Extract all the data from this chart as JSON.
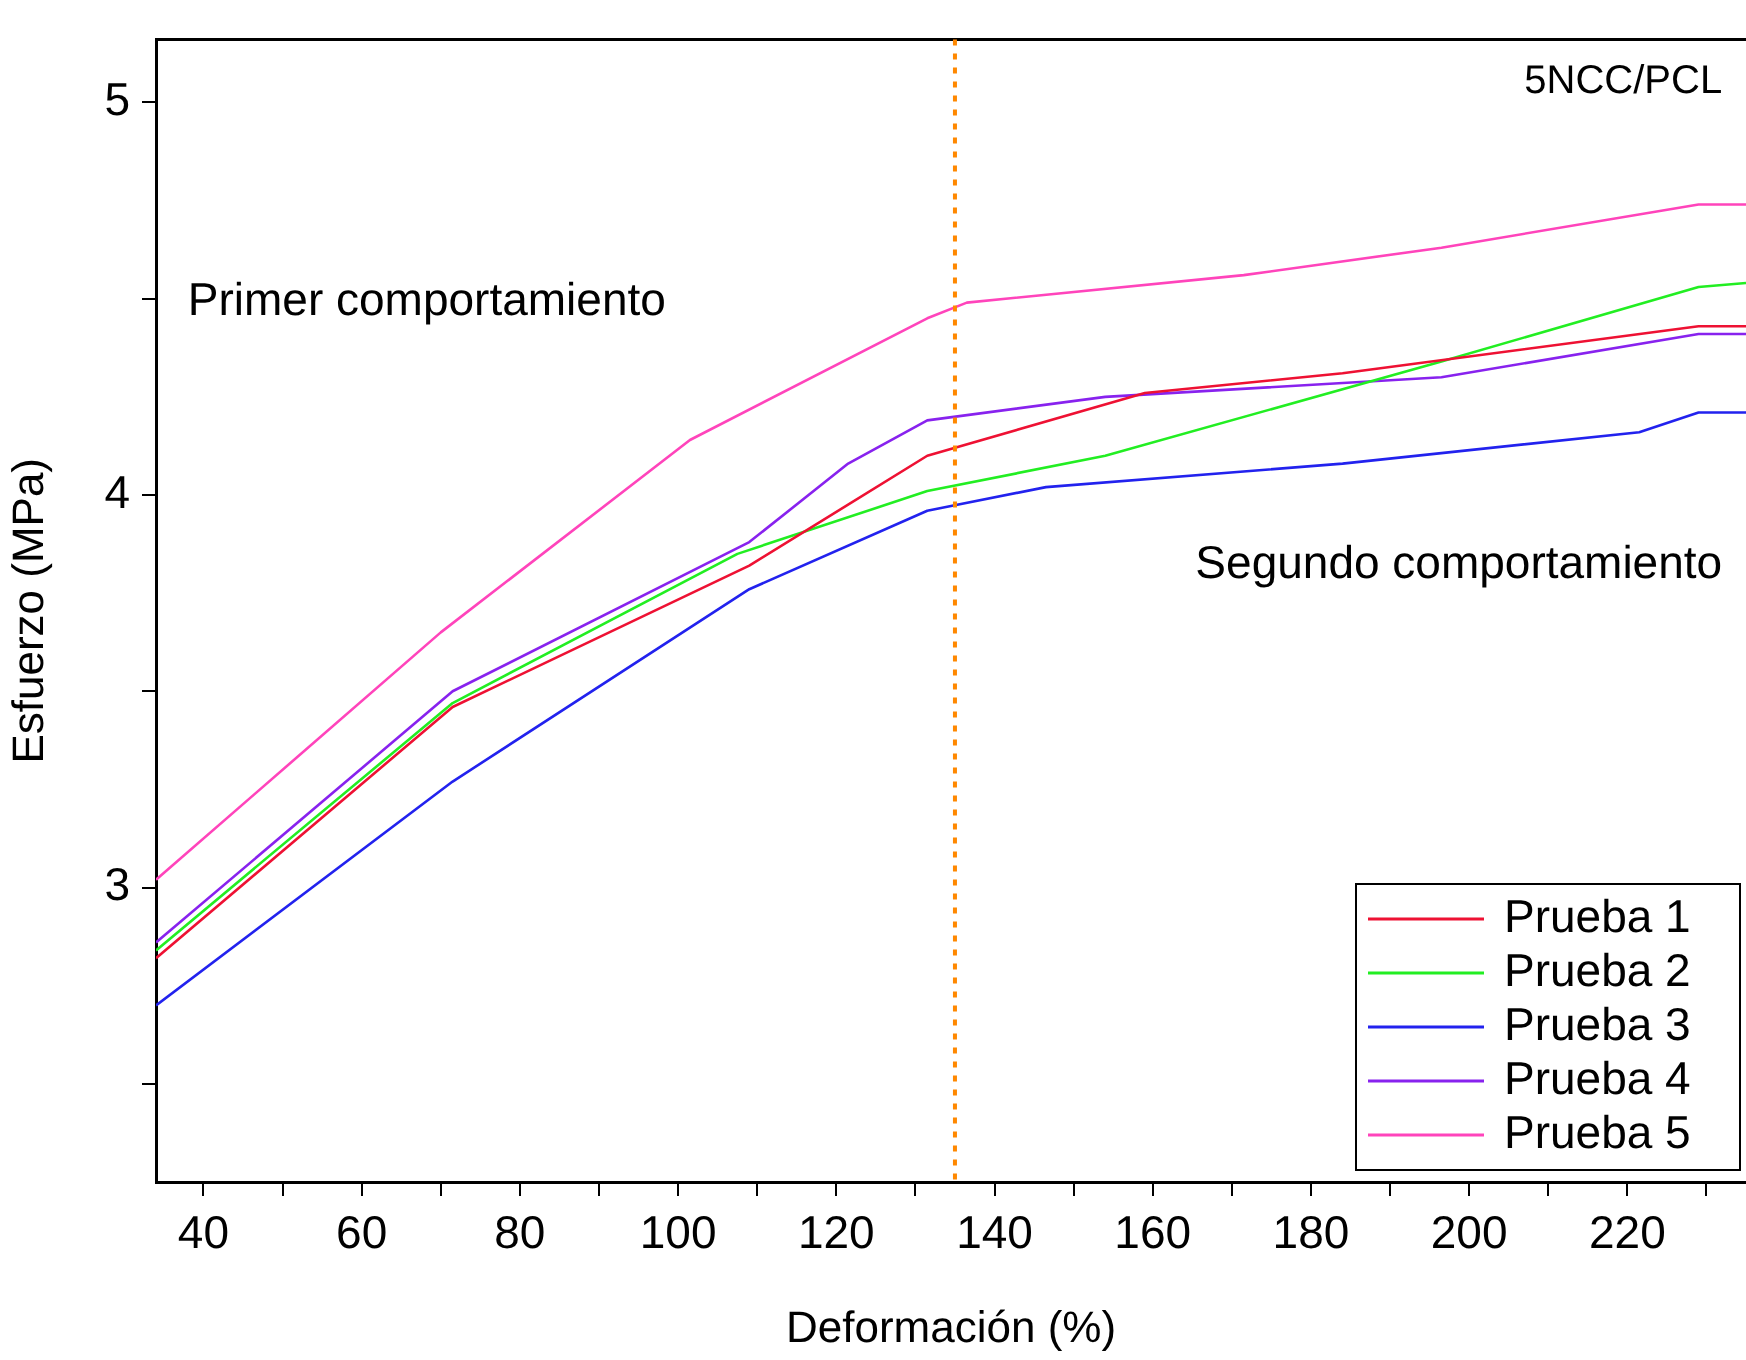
{
  "chart_data": {
    "type": "line",
    "xlabel": "Deformación (%)",
    "ylabel": "Esfuerzo (MPa)",
    "xlim": [
      34,
      235
    ],
    "ylim": [
      2.25,
      5.16
    ],
    "xticks": [
      40,
      {
        "value": 50,
        "label": null
      },
      60,
      {
        "value": 70,
        "label": null
      },
      80,
      {
        "value": 90,
        "label": null
      },
      100,
      {
        "value": 110,
        "label": null
      },
      120,
      {
        "value": 130,
        "label": null
      },
      140,
      {
        "value": 150,
        "label": null
      },
      160,
      {
        "value": 170,
        "label": null
      },
      180,
      {
        "value": 190,
        "label": null
      },
      200,
      {
        "value": 210,
        "label": null
      },
      220,
      {
        "value": 230,
        "label": null
      }
    ],
    "yticks": [
      {
        "value": 2.5,
        "label": null
      },
      3,
      {
        "value": 3.5,
        "label": null
      },
      4,
      {
        "value": 4.5,
        "label": null
      },
      5
    ],
    "grid": false,
    "legend": "bottom right",
    "marker": "none",
    "line_style": "solid",
    "series": [
      {
        "name": "Prueba 1",
        "color": "#ee1133",
        "x": [
          34,
          71.5,
          109,
          131.5,
          159,
          184,
          229,
          235
        ],
        "values": [
          2.82,
          3.46,
          3.82,
          4.1,
          4.26,
          4.31,
          4.43,
          4.43
        ]
      },
      {
        "name": "Prueba 2",
        "color": "#22ee22",
        "x": [
          34,
          71.5,
          107.5,
          131.5,
          154,
          196.5,
          229,
          235
        ],
        "values": [
          2.84,
          3.47,
          3.85,
          4.01,
          4.1,
          4.34,
          4.53,
          4.54
        ]
      },
      {
        "name": "Prueba 3",
        "color": "#2222ee",
        "x": [
          34,
          71.5,
          109,
          131.5,
          146.5,
          184,
          221.5,
          229,
          235
        ],
        "values": [
          2.7,
          3.27,
          3.76,
          3.96,
          4.02,
          4.08,
          4.16,
          4.21,
          4.21
        ]
      },
      {
        "name": "Prueba 4",
        "color": "#8822ee",
        "x": [
          34,
          71.5,
          109,
          121.5,
          131.5,
          154,
          196.5,
          229,
          235
        ],
        "values": [
          2.86,
          3.5,
          3.88,
          4.08,
          4.19,
          4.25,
          4.3,
          4.41,
          4.41
        ]
      },
      {
        "name": "Prueba 5",
        "color": "#ff44bb",
        "x": [
          34,
          70,
          101.5,
          131.5,
          136.5,
          171.5,
          196.5,
          229,
          235
        ],
        "values": [
          3.02,
          3.65,
          4.14,
          4.45,
          4.49,
          4.56,
          4.63,
          4.74,
          4.74
        ]
      }
    ],
    "ref_lines": [
      {
        "axis": "x",
        "value": 135,
        "color": "#ff8800",
        "line_style": "dotted"
      }
    ],
    "annotations": [
      "5NCC/PCL",
      "Primer comportamiento",
      "Segundo comportamiento"
    ]
  }
}
